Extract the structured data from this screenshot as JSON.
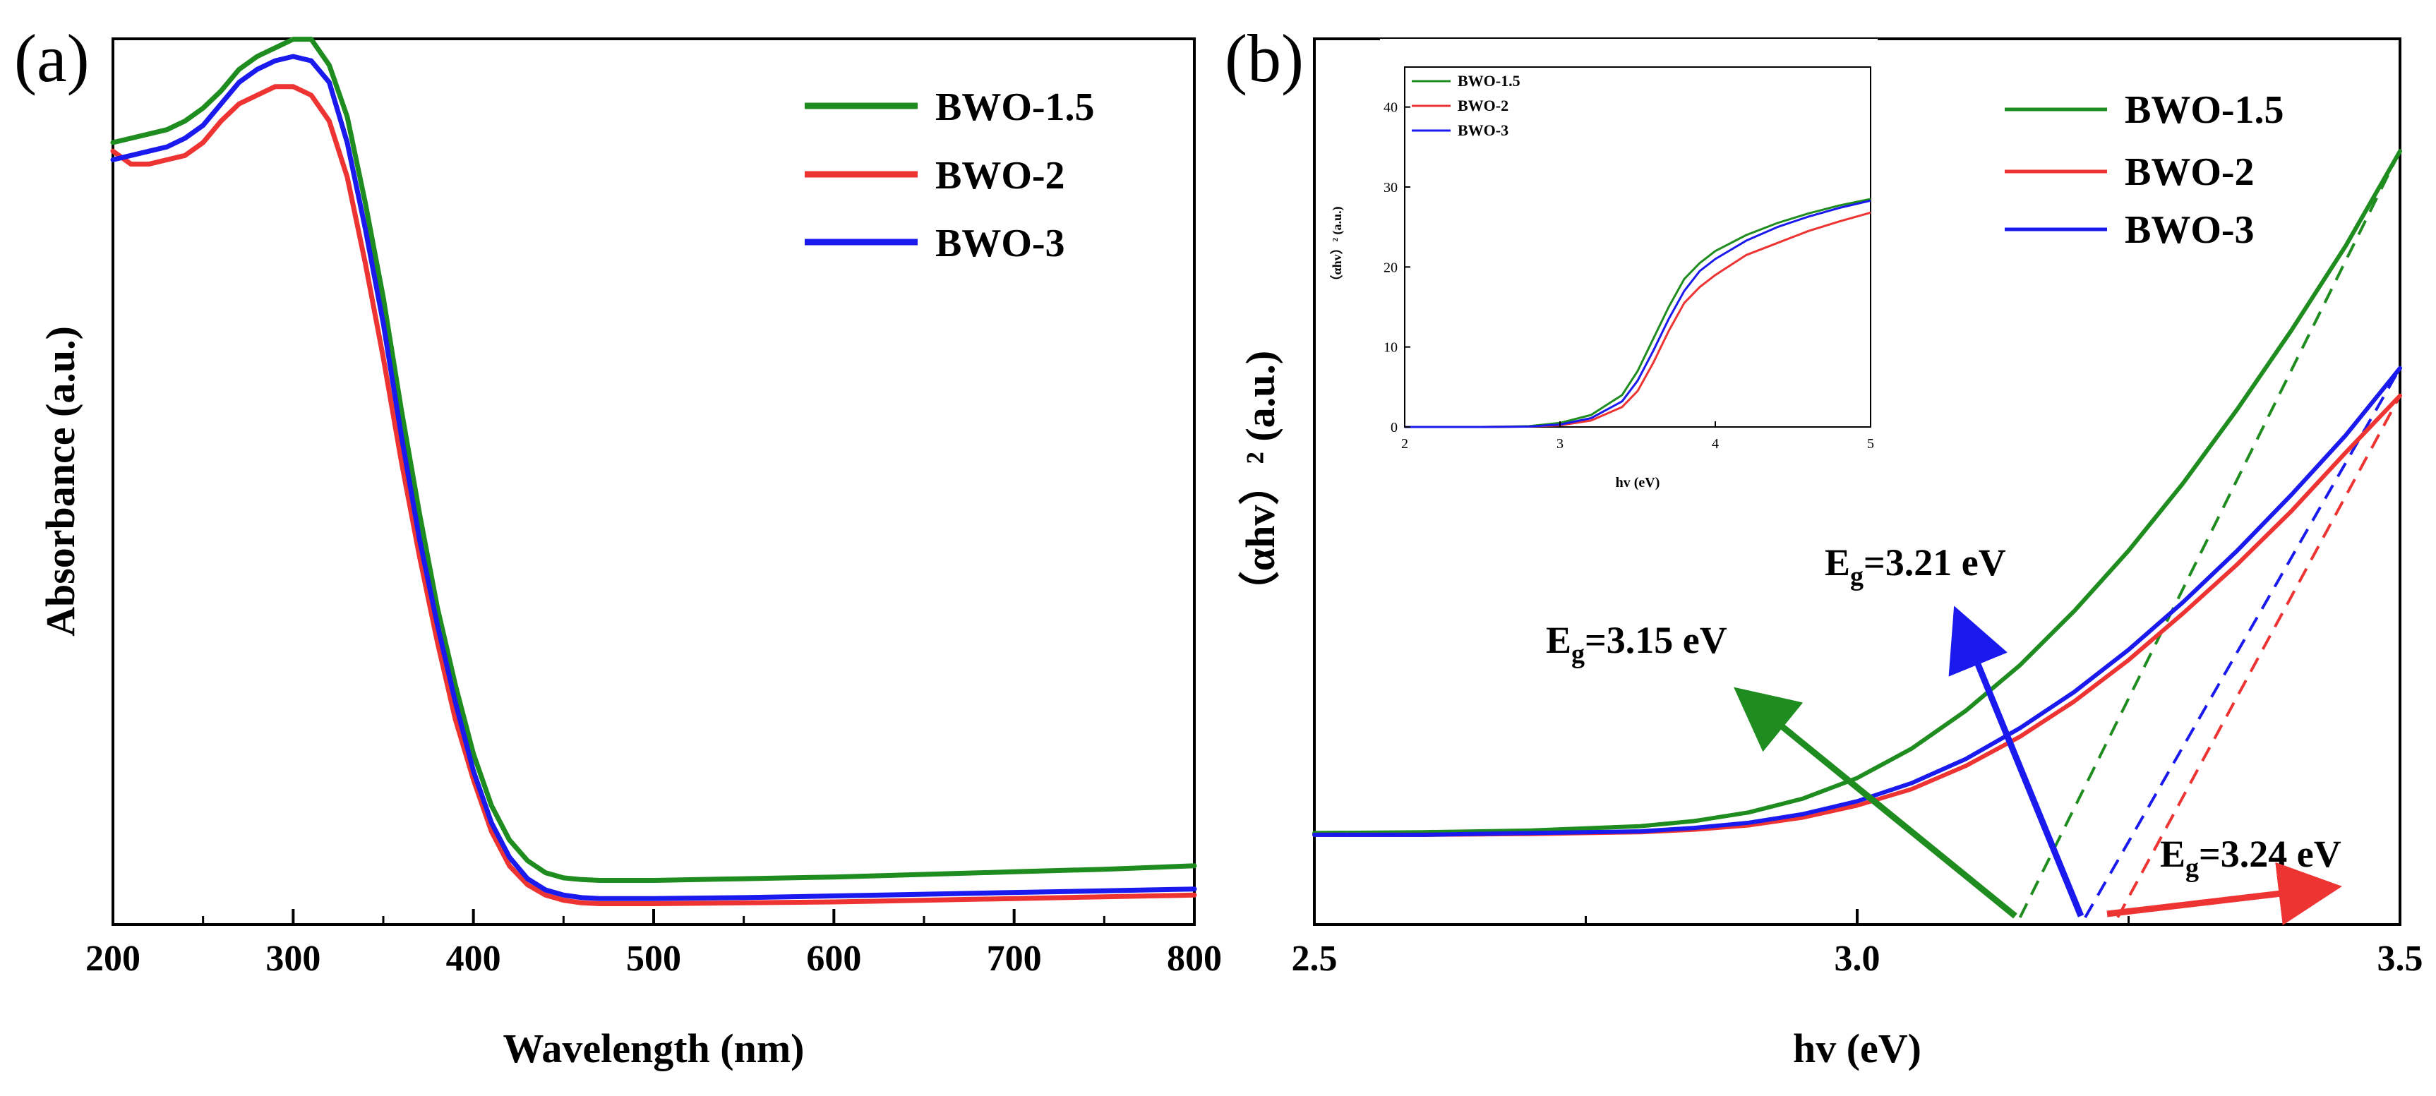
{
  "colors": {
    "green": "#1e8c1e",
    "red": "#ee3333",
    "blue": "#1a1aee",
    "axis": "#000000"
  },
  "chart_data": [
    {
      "id": "a",
      "panel_label": "(a)",
      "type": "line",
      "title": "",
      "xlabel": "Wavelength (nm)",
      "ylabel": "Absorbance (a.u.)",
      "xlim": [
        200,
        800
      ],
      "ylim": [
        0,
        1
      ],
      "xticks": [
        200,
        300,
        400,
        500,
        600,
        700,
        800
      ],
      "xtick_labels": [
        "200",
        "300",
        "400",
        "500",
        "600",
        "700",
        "800"
      ],
      "legend": [
        "BWO-1.5",
        "BWO-2",
        "BWO-3"
      ],
      "series": [
        {
          "name": "BWO-1.5",
          "color": "green",
          "x": [
            200,
            210,
            220,
            230,
            240,
            250,
            260,
            270,
            280,
            290,
            300,
            310,
            320,
            330,
            340,
            350,
            360,
            370,
            380,
            390,
            400,
            410,
            420,
            430,
            440,
            450,
            460,
            470,
            480,
            500,
            550,
            600,
            650,
            700,
            750,
            800
          ],
          "y": [
            0.9,
            0.905,
            0.91,
            0.915,
            0.925,
            0.94,
            0.96,
            0.985,
            1.0,
            1.01,
            1.02,
            1.02,
            0.99,
            0.93,
            0.83,
            0.72,
            0.59,
            0.47,
            0.36,
            0.27,
            0.19,
            0.13,
            0.09,
            0.066,
            0.052,
            0.046,
            0.044,
            0.043,
            0.043,
            0.043,
            0.045,
            0.047,
            0.05,
            0.053,
            0.056,
            0.06
          ]
        },
        {
          "name": "BWO-2",
          "color": "red",
          "x": [
            200,
            210,
            220,
            230,
            240,
            250,
            260,
            270,
            280,
            290,
            300,
            310,
            320,
            330,
            340,
            350,
            360,
            370,
            380,
            390,
            400,
            410,
            420,
            430,
            440,
            450,
            460,
            470,
            480,
            500,
            550,
            600,
            650,
            700,
            750,
            800
          ],
          "y": [
            0.89,
            0.875,
            0.875,
            0.88,
            0.885,
            0.9,
            0.925,
            0.945,
            0.955,
            0.965,
            0.965,
            0.955,
            0.925,
            0.86,
            0.76,
            0.65,
            0.53,
            0.42,
            0.32,
            0.23,
            0.16,
            0.1,
            0.06,
            0.038,
            0.026,
            0.02,
            0.017,
            0.016,
            0.016,
            0.016,
            0.017,
            0.018,
            0.02,
            0.022,
            0.024,
            0.026
          ]
        },
        {
          "name": "BWO-3",
          "color": "blue",
          "x": [
            200,
            210,
            220,
            230,
            240,
            250,
            260,
            270,
            280,
            290,
            300,
            310,
            320,
            330,
            340,
            350,
            360,
            370,
            380,
            390,
            400,
            410,
            420,
            430,
            440,
            450,
            460,
            470,
            480,
            500,
            550,
            600,
            650,
            700,
            750,
            800
          ],
          "y": [
            0.88,
            0.885,
            0.89,
            0.895,
            0.905,
            0.92,
            0.945,
            0.97,
            0.985,
            0.995,
            1.0,
            0.995,
            0.97,
            0.9,
            0.8,
            0.69,
            0.56,
            0.44,
            0.34,
            0.25,
            0.17,
            0.11,
            0.07,
            0.045,
            0.032,
            0.026,
            0.023,
            0.022,
            0.022,
            0.022,
            0.023,
            0.025,
            0.027,
            0.029,
            0.031,
            0.033
          ]
        }
      ]
    },
    {
      "id": "b",
      "panel_label": "(b)",
      "type": "line",
      "title": "",
      "xlabel": "hv (eV)",
      "ylabel": "（αhv）² (a.u.)",
      "xlim": [
        2.5,
        3.5
      ],
      "ylim": [
        0,
        1
      ],
      "xticks": [
        2.5,
        3.0,
        3.5
      ],
      "xtick_labels": [
        "2.5",
        "3.0",
        "3.5"
      ],
      "legend": [
        "BWO-1.5",
        "BWO-2",
        "BWO-3"
      ],
      "series": [
        {
          "name": "BWO-1.5",
          "color": "green",
          "x": [
            2.5,
            2.6,
            2.7,
            2.8,
            2.85,
            2.9,
            2.95,
            3.0,
            3.05,
            3.1,
            3.15,
            3.2,
            3.25,
            3.3,
            3.35,
            3.4,
            3.45,
            3.5
          ],
          "y": [
            0.098,
            0.099,
            0.101,
            0.106,
            0.112,
            0.122,
            0.138,
            0.162,
            0.196,
            0.24,
            0.293,
            0.356,
            0.426,
            0.504,
            0.59,
            0.682,
            0.78,
            0.89
          ]
        },
        {
          "name": "BWO-2",
          "color": "red",
          "x": [
            2.5,
            2.6,
            2.7,
            2.8,
            2.85,
            2.9,
            2.95,
            3.0,
            3.05,
            3.1,
            3.15,
            3.2,
            3.25,
            3.3,
            3.35,
            3.4,
            3.45,
            3.5
          ],
          "y": [
            0.096,
            0.096,
            0.097,
            0.099,
            0.102,
            0.107,
            0.116,
            0.13,
            0.149,
            0.176,
            0.21,
            0.251,
            0.299,
            0.353,
            0.41,
            0.472,
            0.54,
            0.606
          ]
        },
        {
          "name": "BWO-3",
          "color": "blue",
          "x": [
            2.5,
            2.6,
            2.7,
            2.8,
            2.85,
            2.9,
            2.95,
            3.0,
            3.05,
            3.1,
            3.15,
            3.2,
            3.25,
            3.3,
            3.35,
            3.4,
            3.45,
            3.5
          ],
          "y": [
            0.096,
            0.096,
            0.098,
            0.1,
            0.104,
            0.11,
            0.12,
            0.135,
            0.156,
            0.184,
            0.22,
            0.262,
            0.311,
            0.366,
            0.426,
            0.491,
            0.56,
            0.638
          ]
        }
      ],
      "tangents": [
        {
          "name": "BWO-1.5",
          "color": "green",
          "x": [
            3.15,
            3.5
          ],
          "y": [
            0.0,
            0.89
          ]
        },
        {
          "name": "BWO-2",
          "color": "red",
          "x": [
            3.24,
            3.5
          ],
          "y": [
            0.0,
            0.606
          ]
        },
        {
          "name": "BWO-3",
          "color": "blue",
          "x": [
            3.21,
            3.5
          ],
          "y": [
            0.0,
            0.638
          ]
        }
      ],
      "annotations": [
        {
          "prefix": "E",
          "sub": "g",
          "suffix": "=3.15 eV",
          "color": "green",
          "points_to_x": 3.15
        },
        {
          "prefix": "E",
          "sub": "g",
          "suffix": "=3.21 eV",
          "color": "blue",
          "points_to_x": 3.21
        },
        {
          "prefix": "E",
          "sub": "g",
          "suffix": "=3.24 eV",
          "color": "red",
          "points_to_x": 3.24
        }
      ],
      "inset": {
        "type": "line",
        "xlabel": "hv (eV)",
        "ylabel": "（αhv）² (a.u.)",
        "xlim": [
          2,
          5
        ],
        "ylim": [
          0,
          45
        ],
        "xticks": [
          2,
          3,
          4,
          5
        ],
        "xtick_labels": [
          "2",
          "3",
          "4",
          "5"
        ],
        "yticks": [
          0,
          10,
          20,
          30,
          40
        ],
        "ytick_labels": [
          "0",
          "10",
          "20",
          "30",
          "40"
        ],
        "legend": [
          "BWO-1.5",
          "BWO-2",
          "BWO-3"
        ],
        "series": [
          {
            "name": "BWO-1.5",
            "color": "green",
            "x": [
              2,
              2.5,
              2.8,
              3,
              3.2,
              3.4,
              3.5,
              3.6,
              3.7,
              3.8,
              3.9,
              4,
              4.2,
              4.4,
              4.6,
              4.8,
              5
            ],
            "y": [
              0,
              0,
              0.1,
              0.5,
              1.5,
              4,
              7,
              11,
              15,
              18.5,
              20.5,
              22,
              24,
              25.5,
              26.7,
              27.7,
              28.5
            ]
          },
          {
            "name": "BWO-2",
            "color": "red",
            "x": [
              2,
              2.5,
              2.8,
              3,
              3.2,
              3.4,
              3.5,
              3.6,
              3.7,
              3.8,
              3.9,
              4,
              4.2,
              4.4,
              4.6,
              4.8,
              5
            ],
            "y": [
              0,
              0,
              0.05,
              0.2,
              0.8,
              2.5,
              4.5,
              8,
              12,
              15.5,
              17.5,
              19,
              21.5,
              23,
              24.5,
              25.7,
              26.8
            ]
          },
          {
            "name": "BWO-3",
            "color": "blue",
            "x": [
              2,
              2.5,
              2.8,
              3,
              3.2,
              3.4,
              3.5,
              3.6,
              3.7,
              3.8,
              3.9,
              4,
              4.2,
              4.4,
              4.6,
              4.8,
              5
            ],
            "y": [
              0,
              0,
              0.05,
              0.3,
              1.1,
              3.2,
              5.8,
              9.5,
              13.5,
              17,
              19.5,
              21,
              23.3,
              25,
              26.3,
              27.4,
              28.3
            ]
          }
        ]
      }
    }
  ]
}
